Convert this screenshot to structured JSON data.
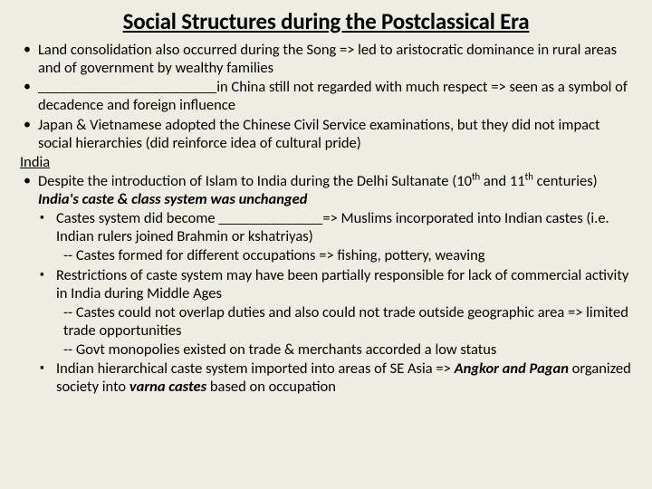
{
  "background_color": "#eeede3",
  "text_color": "#000000",
  "font_family": "Calibri",
  "title": {
    "text": "Social Structures during the Postclassical Era",
    "fontsize": 25,
    "weight": "bold",
    "underline": true,
    "align": "center"
  },
  "body_fontsize": 16.5,
  "line_height": 1.22,
  "bullets": [
    {
      "level": 1,
      "html": "Land consolidation also occurred during the Song => led to aristocratic dominance in rural areas and of government by wealthy families"
    },
    {
      "level": 1,
      "html": "________________________in China still not regarded with much respect => seen as a symbol of decadence and foreign influence"
    },
    {
      "level": 1,
      "html": "Japan & Vietnamese adopted the Chinese Civil Service examinations, but they did not impact social hierarchies (did reinforce idea of cultural pride)"
    },
    {
      "level": 0,
      "subhead": true,
      "html": "India"
    },
    {
      "level": 1,
      "html": "Despite the introduction of Islam to India during the Delhi Sultanate (10<sup>th</sup> and 11<sup>th</sup> centuries) <span class=\"bold italic\">India's caste & class system was unchanged</span>"
    },
    {
      "level": 2,
      "html": "Castes system did become ______________=> Muslims incorporated into Indian castes (i.e. Indian rulers joined Brahmin or kshatriyas)"
    },
    {
      "level": 3,
      "html": "-- Castes formed for different occupations => fishing, pottery, weaving"
    },
    {
      "level": 2,
      "html": "Restrictions of caste system may have been partially responsible for lack of commercial activity in India during Middle Ages"
    },
    {
      "level": 3,
      "html": "-- Castes could not overlap duties and also could not trade outside geographic area => limited trade opportunities"
    },
    {
      "level": 3,
      "html": "-- Govt monopolies existed on trade & merchants accorded a low status"
    },
    {
      "level": 2,
      "html": "Indian hierarchical caste system imported into areas of SE Asia => <span class=\"bold italic\">Angkor and Pagan</span> organized society into <span class=\"bold italic\">varna castes</span> based on occupation"
    }
  ]
}
